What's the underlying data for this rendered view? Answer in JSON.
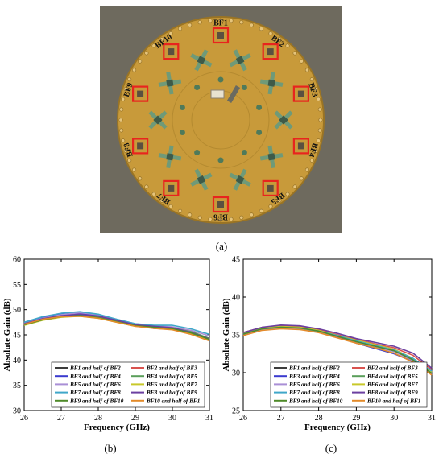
{
  "figure": {
    "panel_a_label": "(a)",
    "panel_b_label": "(b)",
    "panel_c_label": "(c)"
  },
  "photo": {
    "board_color": "#c89a3a",
    "marker_color": "#e8241e",
    "beamformer_labels": [
      "BF1",
      "BF2",
      "BF3",
      "BF4",
      "BF5",
      "BF6",
      "BF7",
      "BF8",
      "BF9",
      "BF10"
    ]
  },
  "chart_data": [
    {
      "type": "line",
      "panel": "(b)",
      "title": "",
      "xlabel": "Frequency (GHz)",
      "ylabel": "Absolute Gain (dB)",
      "xlim": [
        26,
        31
      ],
      "ylim": [
        30,
        60
      ],
      "xticks": [
        26,
        27,
        28,
        29,
        30,
        31
      ],
      "yticks": [
        30,
        35,
        40,
        45,
        50,
        55,
        60
      ],
      "grid": false,
      "legend_position": "bottom",
      "x": [
        26,
        26.5,
        27,
        27.5,
        28,
        28.5,
        29,
        29.5,
        30,
        30.5,
        31
      ],
      "series": [
        {
          "name": "BF1 and half of BF2",
          "color": "#3c3c3c",
          "values": [
            47.2,
            48.2,
            48.8,
            49.0,
            48.6,
            47.8,
            47.0,
            46.6,
            46.4,
            45.6,
            44.2
          ]
        },
        {
          "name": "BF2 and half of BF3",
          "color": "#d9534f",
          "values": [
            47.0,
            48.0,
            48.6,
            48.8,
            48.4,
            47.6,
            46.8,
            46.5,
            46.2,
            45.3,
            44.0
          ]
        },
        {
          "name": "BF3 and half of BF4",
          "color": "#3a3acf",
          "values": [
            47.4,
            48.5,
            49.1,
            49.3,
            48.8,
            47.9,
            46.9,
            46.3,
            46.1,
            45.2,
            43.9
          ]
        },
        {
          "name": "BF4 and half of BF5",
          "color": "#5a9e5a",
          "values": [
            47.1,
            48.1,
            48.7,
            48.9,
            48.5,
            47.7,
            46.9,
            46.6,
            46.5,
            45.7,
            44.3
          ]
        },
        {
          "name": "BF5 and half of BF6",
          "color": "#a98fd6",
          "values": [
            47.3,
            48.3,
            49.0,
            49.4,
            49.0,
            48.1,
            47.2,
            46.8,
            46.6,
            45.9,
            44.8
          ]
        },
        {
          "name": "BF6 and half of BF7",
          "color": "#c8c82a",
          "values": [
            46.9,
            47.9,
            48.5,
            48.7,
            48.3,
            47.5,
            46.7,
            46.4,
            46.1,
            45.2,
            43.9
          ]
        },
        {
          "name": "BF7 and half of BF8",
          "color": "#3fa7c9",
          "values": [
            47.5,
            48.6,
            49.3,
            49.6,
            49.1,
            48.1,
            47.2,
            46.9,
            46.9,
            46.2,
            45.1
          ]
        },
        {
          "name": "BF8 and half of BF9",
          "color": "#6b3fa0",
          "values": [
            47.2,
            48.2,
            48.8,
            49.1,
            48.7,
            47.9,
            47.0,
            46.7,
            46.4,
            45.5,
            44.2
          ]
        },
        {
          "name": "BF9 and half of BF10",
          "color": "#4f8a2a",
          "values": [
            47.0,
            48.0,
            48.6,
            48.8,
            48.4,
            47.6,
            46.8,
            46.5,
            46.2,
            45.4,
            44.1
          ]
        },
        {
          "name": "BF10 and half of BF1",
          "color": "#e38a2a",
          "values": [
            47.1,
            48.1,
            48.6,
            48.7,
            48.3,
            47.5,
            46.7,
            46.3,
            46.0,
            45.1,
            43.8
          ]
        }
      ]
    },
    {
      "type": "line",
      "panel": "(c)",
      "title": "",
      "xlabel": "Frequency (GHz)",
      "ylabel": "Absolute Gain (dB)",
      "xlim": [
        26,
        31
      ],
      "ylim": [
        25,
        45
      ],
      "xticks": [
        26,
        27,
        28,
        29,
        30,
        31
      ],
      "yticks": [
        25,
        30,
        35,
        40,
        45
      ],
      "grid": false,
      "legend_position": "bottom",
      "x": [
        26,
        26.5,
        27,
        27.5,
        28,
        28.5,
        29,
        29.5,
        30,
        30.5,
        31
      ],
      "series": [
        {
          "name": "BF1 and half of BF2",
          "color": "#3c3c3c",
          "values": [
            35.2,
            35.9,
            36.1,
            36.0,
            35.6,
            35.0,
            34.3,
            33.6,
            33.0,
            31.9,
            30.1
          ]
        },
        {
          "name": "BF2 and half of BF3",
          "color": "#d9534f",
          "values": [
            35.3,
            36.0,
            36.2,
            36.1,
            35.7,
            35.0,
            34.4,
            33.8,
            33.3,
            32.3,
            30.4
          ]
        },
        {
          "name": "BF3 and half of BF4",
          "color": "#3a3acf",
          "values": [
            35.0,
            35.8,
            36.0,
            35.9,
            35.5,
            34.7,
            33.9,
            33.2,
            32.5,
            31.5,
            29.8
          ]
        },
        {
          "name": "BF4 and half of BF5",
          "color": "#5a9e5a",
          "values": [
            35.1,
            35.8,
            36.0,
            35.9,
            35.5,
            34.9,
            34.2,
            33.6,
            33.0,
            31.8,
            30.0
          ]
        },
        {
          "name": "BF5 and half of BF6",
          "color": "#a98fd6",
          "values": [
            35.0,
            35.7,
            35.9,
            35.8,
            35.4,
            34.8,
            34.1,
            33.4,
            32.8,
            31.6,
            29.9
          ]
        },
        {
          "name": "BF6 and half of BF7",
          "color": "#c8c82a",
          "values": [
            35.2,
            35.9,
            36.1,
            36.0,
            35.6,
            34.9,
            34.3,
            33.7,
            33.1,
            31.9,
            30.1
          ]
        },
        {
          "name": "BF7 and half of BF8",
          "color": "#3fa7c9",
          "values": [
            35.1,
            35.8,
            36.0,
            35.9,
            35.5,
            34.9,
            34.2,
            33.6,
            33.0,
            31.9,
            30.2
          ]
        },
        {
          "name": "BF8 and half of BF9",
          "color": "#6b3fa0",
          "values": [
            35.3,
            36.0,
            36.3,
            36.2,
            35.8,
            35.2,
            34.5,
            34.0,
            33.5,
            32.6,
            30.6
          ]
        },
        {
          "name": "BF9 and half of BF10",
          "color": "#4f8a2a",
          "values": [
            35.1,
            35.8,
            36.0,
            35.9,
            35.5,
            34.8,
            34.1,
            33.5,
            32.9,
            31.7,
            29.9
          ]
        },
        {
          "name": "BF10 and half of BF1",
          "color": "#e38a2a",
          "values": [
            34.9,
            35.6,
            35.8,
            35.7,
            35.3,
            34.6,
            33.9,
            33.3,
            32.6,
            31.4,
            29.7
          ]
        }
      ]
    }
  ]
}
